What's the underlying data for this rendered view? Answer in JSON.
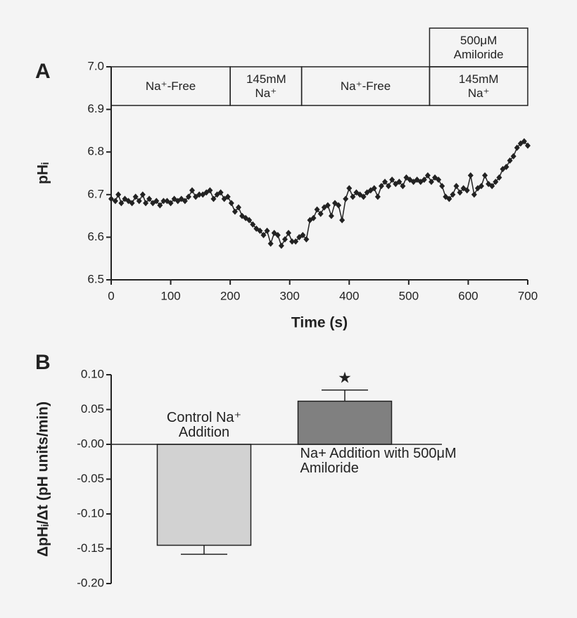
{
  "chart_data": [
    {
      "type": "line",
      "panel_label": "A",
      "x_label": "Time (s)",
      "y_label": "pHᵢ",
      "color": "#222222",
      "x": [
        0,
        7,
        12,
        17,
        23,
        29,
        35,
        41,
        47,
        53,
        58,
        64,
        70,
        76,
        82,
        88,
        94,
        100,
        106,
        112,
        118,
        124,
        130,
        136,
        142,
        148,
        154,
        160,
        166,
        172,
        178,
        184,
        190,
        196,
        202,
        208,
        214,
        220,
        226,
        232,
        238,
        244,
        250,
        256,
        262,
        268,
        274,
        280,
        286,
        292,
        298,
        304,
        310,
        316,
        322,
        328,
        334,
        340,
        346,
        352,
        358,
        364,
        370,
        376,
        382,
        388,
        394,
        400,
        406,
        412,
        418,
        424,
        430,
        436,
        442,
        448,
        454,
        460,
        466,
        472,
        478,
        484,
        490,
        496,
        502,
        508,
        514,
        520,
        526,
        532,
        538,
        544,
        550,
        556,
        562,
        568,
        574,
        580,
        586,
        592,
        598,
        604,
        610,
        616,
        622,
        628,
        634,
        640,
        646,
        652,
        658,
        664,
        670,
        676,
        682,
        688,
        694,
        700
      ],
      "values": [
        6.69,
        6.685,
        6.7,
        6.68,
        6.69,
        6.685,
        6.68,
        6.695,
        6.685,
        6.7,
        6.68,
        6.69,
        6.68,
        6.685,
        6.675,
        6.685,
        6.685,
        6.68,
        6.69,
        6.685,
        6.69,
        6.685,
        6.695,
        6.71,
        6.695,
        6.7,
        6.7,
        6.705,
        6.71,
        6.69,
        6.7,
        6.705,
        6.69,
        6.695,
        6.68,
        6.66,
        6.67,
        6.65,
        6.645,
        6.64,
        6.63,
        6.62,
        6.615,
        6.605,
        6.615,
        6.585,
        6.61,
        6.605,
        6.58,
        6.595,
        6.61,
        6.59,
        6.59,
        6.6,
        6.605,
        6.595,
        6.64,
        6.645,
        6.665,
        6.655,
        6.67,
        6.675,
        6.65,
        6.68,
        6.675,
        6.64,
        6.69,
        6.715,
        6.695,
        6.705,
        6.7,
        6.695,
        6.705,
        6.71,
        6.715,
        6.695,
        6.72,
        6.73,
        6.72,
        6.735,
        6.725,
        6.73,
        6.72,
        6.74,
        6.735,
        6.73,
        6.735,
        6.73,
        6.735,
        6.745,
        6.73,
        6.74,
        6.735,
        6.72,
        6.695,
        6.69,
        6.7,
        6.72,
        6.705,
        6.715,
        6.71,
        6.745,
        6.7,
        6.715,
        6.72,
        6.745,
        6.725,
        6.72,
        6.73,
        6.74,
        6.76,
        6.765,
        6.78,
        6.79,
        6.81,
        6.82,
        6.825,
        6.815
      ],
      "xlim": [
        0,
        700
      ],
      "xticks": [
        0,
        100,
        200,
        300,
        400,
        500,
        600,
        700
      ],
      "ylim": [
        6.5,
        7.0
      ],
      "yticks": [
        6.5,
        6.6,
        6.7,
        6.8,
        6.9,
        {
          "value": 7,
          "label": "7.0"
        }
      ],
      "periods": [
        {
          "label": "Na⁺-Free",
          "start": 0,
          "end": 200
        },
        {
          "label": "145mM Na⁺",
          "start": 200,
          "end": 320
        },
        {
          "label": "Na⁺-Free",
          "start": 320,
          "end": 535
        },
        {
          "label": "145mM Na⁺",
          "start": 535,
          "end": 700
        }
      ],
      "treatments": [
        {
          "label": "500μM Amiloride",
          "start": 535,
          "end": 700
        }
      ]
    },
    {
      "type": "bar",
      "panel_label": "B",
      "y_label": "ΔpHᵢ/Δt (pH units/min)",
      "categories": [
        "Control Na⁺ Addition",
        "Na+ Addition with 500μM Amiloride"
      ],
      "values": [
        -0.145,
        0.062
      ],
      "errors": [
        0.013,
        0.016
      ],
      "colors": [
        "#d2d2d2",
        "#808080"
      ],
      "annotation": "★",
      "ylim": [
        -0.2,
        0.1
      ],
      "yticks": [
        {
          "value": -0.2,
          "label": "-0.20"
        },
        -0.15,
        {
          "value": -0.1,
          "label": "-0.10"
        },
        -0.05,
        {
          "value": 0,
          "label": "-0.00"
        },
        0.05,
        {
          "value": 0.1,
          "label": "0.10"
        }
      ]
    }
  ]
}
